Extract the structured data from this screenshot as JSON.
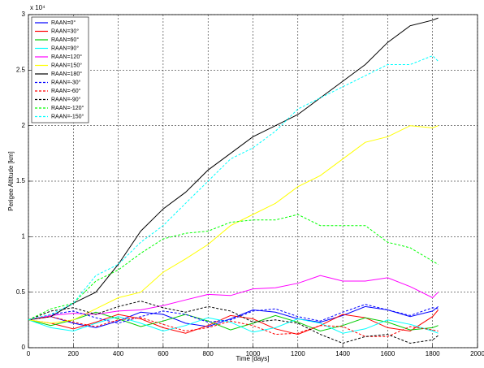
{
  "chart_data": {
    "type": "line",
    "x_label": "Time [days]",
    "y_label": "Perigee Altitude [km]",
    "y_exponent": "x 10⁴",
    "x": [
      0,
      100,
      200,
      300,
      400,
      500,
      600,
      700,
      800,
      900,
      1000,
      1100,
      1200,
      1300,
      1400,
      1500,
      1600,
      1700,
      1800,
      1825
    ],
    "xlim": [
      0,
      2000
    ],
    "xticks": [
      0,
      200,
      400,
      600,
      800,
      1000,
      1200,
      1400,
      1600,
      1800,
      2000
    ],
    "ylim": [
      0,
      30000
    ],
    "yticks": [
      0,
      {
        "value": 5000,
        "label": "0.5"
      },
      {
        "value": 10000,
        "label": "1"
      },
      {
        "value": 15000,
        "label": "1.5"
      },
      {
        "value": 20000,
        "label": "2"
      },
      {
        "value": 25000,
        "label": "2.5"
      },
      {
        "value": 30000,
        "label": "3"
      }
    ],
    "grid": true,
    "legend": "upper left",
    "series": [
      {
        "name": "RAAN=0°",
        "color": "#0000ff",
        "dash": false,
        "values": [
          2500,
          2800,
          2200,
          1800,
          2400,
          3200,
          3000,
          2200,
          1900,
          2600,
          3400,
          3200,
          2600,
          2300,
          2900,
          3700,
          3400,
          2800,
          3300,
          3700
        ]
      },
      {
        "name": "RAAN=30°",
        "color": "#ff0000",
        "dash": false,
        "values": [
          2500,
          2200,
          1700,
          2300,
          3000,
          2600,
          1800,
          1300,
          2000,
          2900,
          2600,
          1700,
          1200,
          2000,
          3000,
          2700,
          1800,
          1500,
          2800,
          3400
        ]
      },
      {
        "name": "RAAN=60°",
        "color": "#00cc00",
        "dash": false,
        "values": [
          2500,
          2000,
          2500,
          3200,
          2600,
          1900,
          2400,
          3000,
          2400,
          1600,
          2200,
          2900,
          2300,
          1500,
          2000,
          2700,
          2300,
          1600,
          1800,
          2000
        ]
      },
      {
        "name": "RAAN=90°",
        "color": "#00ffff",
        "dash": false,
        "values": [
          2500,
          1800,
          1500,
          2200,
          2800,
          2200,
          1500,
          2000,
          2700,
          2300,
          1400,
          1800,
          2600,
          2200,
          1300,
          1700,
          2500,
          2100,
          1500,
          1300
        ]
      },
      {
        "name": "RAAN=120°",
        "color": "#ff00ff",
        "dash": false,
        "values": [
          2500,
          2900,
          3100,
          3000,
          3300,
          3400,
          3800,
          4300,
          4800,
          4700,
          5300,
          5400,
          5800,
          6500,
          6000,
          6000,
          6300,
          5500,
          4500,
          5000
        ]
      },
      {
        "name": "RAAN=150°",
        "color": "#ffff00",
        "dash": false,
        "values": [
          2500,
          2200,
          2500,
          3500,
          4500,
          5000,
          6800,
          8000,
          9300,
          11000,
          12000,
          13000,
          14500,
          15500,
          17000,
          18500,
          19000,
          20000,
          19800,
          20000
        ]
      },
      {
        "name": "RAAN=180°",
        "color": "#000000",
        "dash": false,
        "values": [
          2500,
          2800,
          4000,
          5000,
          7500,
          10500,
          12500,
          14000,
          16000,
          17500,
          19000,
          20000,
          21000,
          22500,
          24000,
          25500,
          27500,
          29000,
          29500,
          29700
        ]
      },
      {
        "name": "RAAN=-30°",
        "color": "#0000ff",
        "dash": true,
        "values": [
          2500,
          3000,
          3300,
          2700,
          2200,
          2800,
          3300,
          3000,
          2300,
          2500,
          3300,
          3500,
          2800,
          2400,
          3200,
          3900,
          3400,
          2900,
          3600,
          3500
        ]
      },
      {
        "name": "RAAN=-60°",
        "color": "#ff0000",
        "dash": true,
        "values": [
          2500,
          2800,
          2300,
          1900,
          2500,
          2700,
          2100,
          1500,
          1800,
          2400,
          2000,
          1200,
          1300,
          2000,
          1900,
          1000,
          1000,
          1900,
          1600,
          1500
        ]
      },
      {
        "name": "RAAN=-90°",
        "color": "#000000",
        "dash": true,
        "values": [
          2500,
          3300,
          3600,
          3000,
          3700,
          4200,
          3600,
          3200,
          3700,
          3300,
          2300,
          2500,
          2200,
          1200,
          400,
          1000,
          1200,
          400,
          700,
          1100
        ]
      },
      {
        "name": "RAAN=-120°",
        "color": "#00ff00",
        "dash": true,
        "values": [
          2500,
          3500,
          4000,
          6000,
          7000,
          8500,
          9800,
          10300,
          10500,
          11300,
          11500,
          11500,
          12000,
          11000,
          11000,
          11000,
          9500,
          9000,
          7800,
          7500
        ]
      },
      {
        "name": "RAAN=-150°",
        "color": "#00ffff",
        "dash": true,
        "values": [
          2500,
          3000,
          4000,
          6500,
          7500,
          9500,
          11000,
          13000,
          15000,
          17000,
          18000,
          19500,
          21500,
          22500,
          23500,
          24500,
          25500,
          25500,
          26300,
          25800
        ]
      }
    ]
  }
}
